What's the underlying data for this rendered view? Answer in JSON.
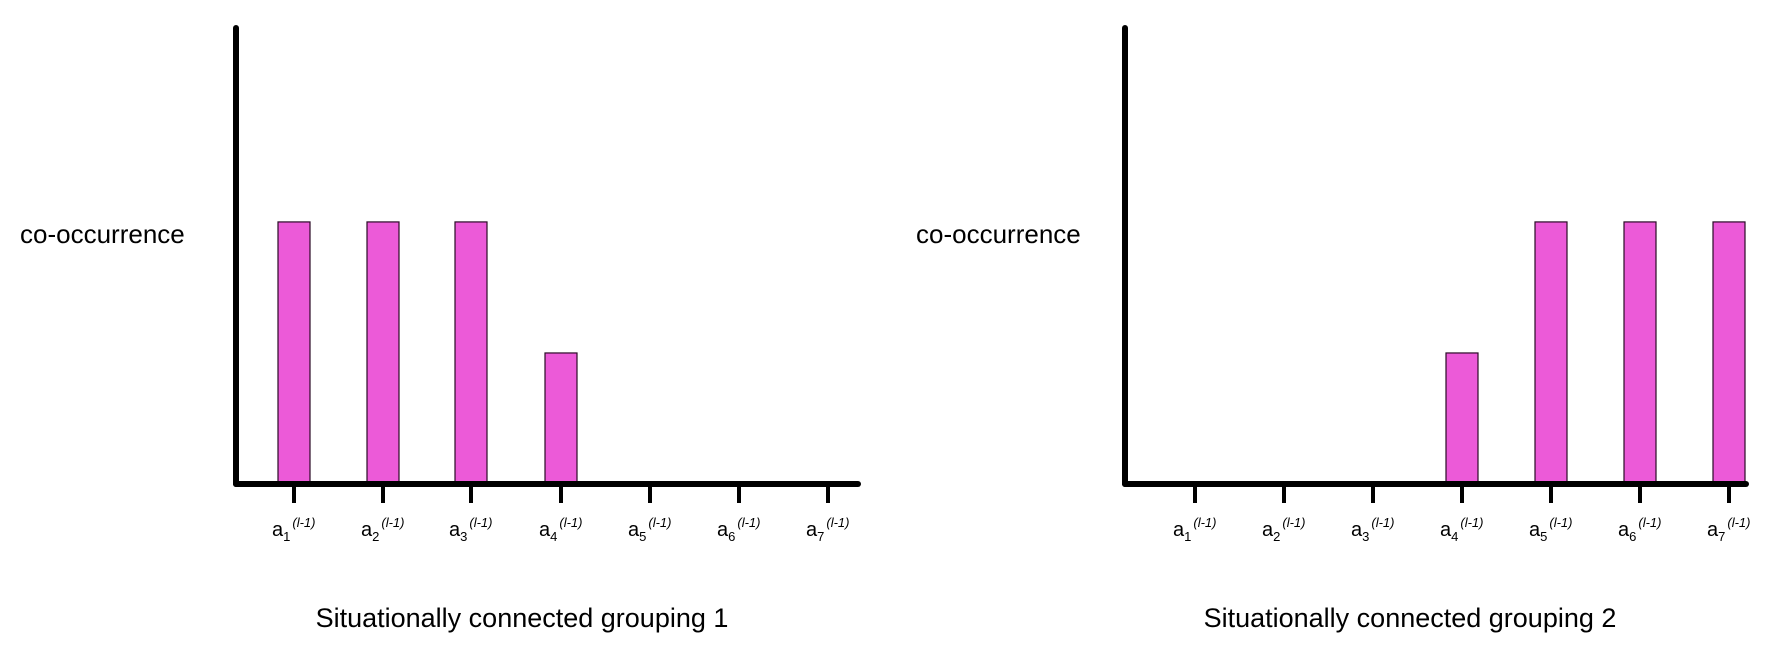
{
  "colors": {
    "bar_fill": "#ec5ad8",
    "bar_stroke": "#2a0a26",
    "axis": "#000000",
    "background": "#ffffff"
  },
  "chart_data": [
    {
      "type": "bar",
      "title": "Situationally connected grouping 1",
      "xlabel": "",
      "ylabel": "co-occurrence",
      "categories": [
        {
          "base": "a",
          "sub": "1",
          "sup": "(l-1)"
        },
        {
          "base": "a",
          "sub": "2",
          "sup": "(l-1)"
        },
        {
          "base": "a",
          "sub": "3",
          "sup": "(l-1)"
        },
        {
          "base": "a",
          "sub": "4",
          "sup": "(l-1)"
        },
        {
          "base": "a",
          "sub": "5",
          "sup": "(l-1)"
        },
        {
          "base": "a",
          "sub": "6",
          "sup": "(l-1)"
        },
        {
          "base": "a",
          "sub": "7",
          "sup": "(l-1)"
        }
      ],
      "values": [
        1,
        1,
        1,
        0.5,
        0,
        0,
        0
      ],
      "ylim": [
        0,
        1.74
      ],
      "grid": false,
      "legend": "none"
    },
    {
      "type": "bar",
      "title": "Situationally connected grouping 2",
      "xlabel": "",
      "ylabel": "co-occurrence",
      "categories": [
        {
          "base": "a",
          "sub": "1",
          "sup": "(l-1)"
        },
        {
          "base": "a",
          "sub": "2",
          "sup": "(l-1)"
        },
        {
          "base": "a",
          "sub": "3",
          "sup": "(l-1)"
        },
        {
          "base": "a",
          "sub": "4",
          "sup": "(l-1)"
        },
        {
          "base": "a",
          "sub": "5",
          "sup": "(l-1)"
        },
        {
          "base": "a",
          "sub": "6",
          "sup": "(l-1)"
        },
        {
          "base": "a",
          "sub": "7",
          "sup": "(l-1)"
        }
      ],
      "values": [
        0,
        0,
        0,
        0.5,
        1,
        1,
        1
      ],
      "ylim": [
        0,
        1.74
      ],
      "grid": false,
      "legend": "none"
    }
  ]
}
